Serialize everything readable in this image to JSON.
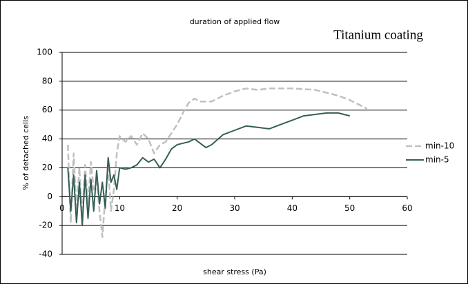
{
  "chart_data": {
    "type": "line",
    "title": "duration of applied flow",
    "annotation": "Titanium coating",
    "x_label": "shear stress (Pa)",
    "y_label": "% of detached cells",
    "xlim": [
      0,
      60
    ],
    "xticks": [
      0,
      10,
      20,
      30,
      40,
      50,
      60
    ],
    "ylim": [
      -40,
      100
    ],
    "yticks": [
      -40,
      -20,
      0,
      20,
      40,
      60,
      80,
      100
    ],
    "grid": true,
    "legend": "right",
    "series": [
      {
        "name": "min-10",
        "color": "#c0c0c0",
        "line_style": "dashed",
        "x": [
          1,
          1.5,
          2,
          2.5,
          3,
          3.5,
          4,
          4.5,
          5,
          5.5,
          6,
          6.5,
          7,
          7.5,
          8,
          8.5,
          9,
          9.5,
          10,
          11,
          12,
          13,
          14,
          15,
          16,
          17,
          18,
          20,
          21,
          22,
          23,
          24,
          26,
          28,
          30,
          32,
          34,
          36,
          40,
          44,
          48,
          50,
          53
        ],
        "values": [
          36,
          -18,
          30,
          -10,
          20,
          -15,
          22,
          -5,
          24,
          5,
          10,
          -10,
          -28,
          0,
          20,
          -10,
          5,
          30,
          42,
          38,
          42,
          36,
          44,
          40,
          30,
          36,
          38,
          50,
          58,
          65,
          68,
          66,
          66,
          70,
          73,
          75,
          74,
          75,
          75,
          74,
          70,
          67,
          61
        ]
      },
      {
        "name": "min-5",
        "color": "#355e55",
        "line_style": "solid",
        "x": [
          1,
          1.5,
          2,
          2.5,
          3,
          3.5,
          4,
          4.5,
          5,
          5.5,
          6,
          6.5,
          7,
          7.5,
          8,
          8.5,
          9,
          9.5,
          10,
          11,
          12,
          13,
          14,
          15,
          16,
          17,
          18,
          19,
          20,
          21,
          22,
          23,
          24,
          25,
          26,
          28,
          30,
          32,
          34,
          36,
          38,
          40,
          42,
          44,
          46,
          48,
          50
        ],
        "values": [
          20,
          -10,
          15,
          -18,
          10,
          -20,
          15,
          -15,
          12,
          -10,
          18,
          -5,
          10,
          -8,
          27,
          10,
          15,
          5,
          20,
          19,
          20,
          22,
          27,
          24,
          26,
          20,
          26,
          33,
          36,
          37,
          38,
          40,
          37,
          34,
          36,
          43,
          46,
          49,
          48,
          47,
          50,
          53,
          56,
          57,
          58,
          58,
          56
        ]
      }
    ]
  }
}
